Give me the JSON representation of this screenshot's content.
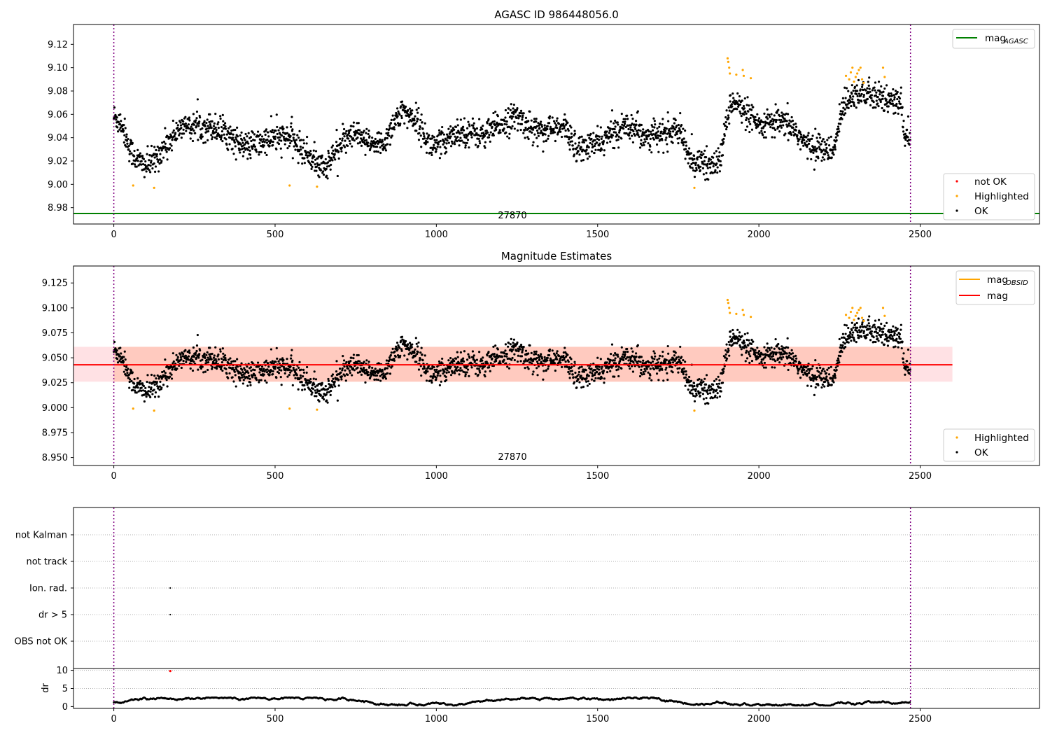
{
  "chart_data": [
    {
      "type": "scatter",
      "title": "AGASC ID 986448056.0",
      "xlabel": "",
      "ylabel": "",
      "xlim": [
        -125,
        2870
      ],
      "ylim": [
        8.966,
        9.137
      ],
      "xticks": [
        "0",
        "500",
        "1000",
        "1500",
        "2000",
        "2500"
      ],
      "yticks": [
        "8.98",
        "9.00",
        "9.02",
        "9.04",
        "9.06",
        "9.08",
        "9.10",
        "9.12"
      ],
      "vlines": [
        0,
        2470
      ],
      "annotation": {
        "text": "27870",
        "x": 1235,
        "y": 8.969
      },
      "hlines": [
        {
          "name": "mag_AGASC",
          "y": 8.975,
          "color": "#008000"
        }
      ],
      "legend_top": [
        {
          "name": "magAGASC",
          "main": "mag",
          "sub": "AGASC",
          "color": "#008000",
          "kind": "line"
        }
      ],
      "legend_bottom": [
        {
          "name": "not OK",
          "color": "#ff0000",
          "kind": "point"
        },
        {
          "name": "Highlighted",
          "color": "#ffa500",
          "kind": "point"
        },
        {
          "name": "OK",
          "color": "#000000",
          "kind": "point"
        }
      ],
      "series": [
        {
          "name": "OK",
          "color": "#000000",
          "n_points": 2470,
          "level": [
            [
              0,
              9.058
            ],
            [
              25,
              9.052
            ],
            [
              50,
              9.03
            ],
            [
              75,
              9.02
            ],
            [
              100,
              9.016
            ],
            [
              125,
              9.02
            ],
            [
              150,
              9.03
            ],
            [
              175,
              9.038
            ],
            [
              200,
              9.048
            ],
            [
              250,
              9.05
            ],
            [
              300,
              9.05
            ],
            [
              350,
              9.044
            ],
            [
              400,
              9.032
            ],
            [
              450,
              9.035
            ],
            [
              500,
              9.04
            ],
            [
              550,
              9.04
            ],
            [
              580,
              9.03
            ],
            [
              620,
              9.022
            ],
            [
              640,
              9.014
            ],
            [
              665,
              9.018
            ],
            [
              700,
              9.034
            ],
            [
              750,
              9.042
            ],
            [
              800,
              9.033
            ],
            [
              840,
              9.036
            ],
            [
              870,
              9.055
            ],
            [
              900,
              9.062
            ],
            [
              940,
              9.055
            ],
            [
              980,
              9.033
            ],
            [
              1020,
              9.035
            ],
            [
              1050,
              9.045
            ],
            [
              1100,
              9.045
            ],
            [
              1150,
              9.042
            ],
            [
              1200,
              9.052
            ],
            [
              1250,
              9.058
            ],
            [
              1300,
              9.047
            ],
            [
              1350,
              9.047
            ],
            [
              1400,
              9.048
            ],
            [
              1440,
              9.03
            ],
            [
              1480,
              9.033
            ],
            [
              1520,
              9.038
            ],
            [
              1550,
              9.045
            ],
            [
              1600,
              9.052
            ],
            [
              1650,
              9.042
            ],
            [
              1700,
              9.042
            ],
            [
              1750,
              9.048
            ],
            [
              1775,
              9.028
            ],
            [
              1800,
              9.02
            ],
            [
              1850,
              9.016
            ],
            [
              1880,
              9.02
            ],
            [
              1900,
              9.055
            ],
            [
              1920,
              9.075
            ],
            [
              1950,
              9.062
            ],
            [
              2000,
              9.05
            ],
            [
              2050,
              9.053
            ],
            [
              2100,
              9.05
            ],
            [
              2150,
              9.033
            ],
            [
              2200,
              9.032
            ],
            [
              2230,
              9.025
            ],
            [
              2260,
              9.068
            ],
            [
              2300,
              9.08
            ],
            [
              2350,
              9.075
            ],
            [
              2400,
              9.072
            ],
            [
              2440,
              9.07
            ],
            [
              2450,
              9.045
            ],
            [
              2470,
              9.04
            ]
          ],
          "noise": 0.006
        },
        {
          "name": "Highlighted",
          "color": "#ffa500",
          "points": [
            [
              60,
              8.999
            ],
            [
              125,
              8.997
            ],
            [
              545,
              8.999
            ],
            [
              630,
              8.998
            ],
            [
              1800,
              8.997
            ],
            [
              1903,
              9.108
            ],
            [
              1905,
              9.105
            ],
            [
              1908,
              9.1
            ],
            [
              1910,
              9.095
            ],
            [
              1930,
              9.094
            ],
            [
              1950,
              9.098
            ],
            [
              1953,
              9.093
            ],
            [
              1975,
              9.091
            ],
            [
              2270,
              9.093
            ],
            [
              2280,
              9.09
            ],
            [
              2285,
              9.096
            ],
            [
              2290,
              9.1
            ],
            [
              2295,
              9.088
            ],
            [
              2300,
              9.092
            ],
            [
              2305,
              9.095
            ],
            [
              2310,
              9.098
            ],
            [
              2315,
              9.1
            ],
            [
              2320,
              9.09
            ],
            [
              2325,
              9.087
            ],
            [
              2385,
              9.1
            ],
            [
              2390,
              9.092
            ]
          ]
        }
      ]
    },
    {
      "type": "scatter",
      "title": "Magnitude Estimates",
      "xlabel": "",
      "ylabel": "",
      "xlim": [
        -125,
        2870
      ],
      "ylim": [
        8.942,
        9.142
      ],
      "xticks": [
        "0",
        "500",
        "1000",
        "1500",
        "2000",
        "2500"
      ],
      "yticks": [
        "8.950",
        "8.975",
        "9.000",
        "9.025",
        "9.050",
        "9.075",
        "9.100",
        "9.125"
      ],
      "vlines": [
        0,
        2470
      ],
      "annotation": {
        "text": "27870",
        "x": 1235,
        "y": 8.945
      },
      "band": {
        "x": [
          -125,
          2600
        ],
        "y": [
          9.026,
          9.061
        ],
        "color": "#ff9aa5",
        "alpha": 0.3
      },
      "obsid_band": {
        "x": [
          0,
          2470
        ],
        "y": [
          9.026,
          9.061
        ],
        "color": "#ffa07a",
        "alpha": 0.35
      },
      "hlines": [
        {
          "name": "mag",
          "y": 9.043,
          "color": "#ff0000",
          "x": [
            -125,
            2600
          ]
        }
      ],
      "legend_top": [
        {
          "name": "magOBSID",
          "main": "mag",
          "sub": "OBSID",
          "color": "#ffa500",
          "kind": "line"
        },
        {
          "name": "mag",
          "main": "mag",
          "sub": "",
          "color": "#ff0000",
          "kind": "line"
        }
      ],
      "legend_bottom": [
        {
          "name": "Highlighted",
          "color": "#ffa500",
          "kind": "point"
        },
        {
          "name": "OK",
          "color": "#000000",
          "kind": "point"
        }
      ]
    },
    {
      "type": "scatter",
      "title": "",
      "xlabel": "",
      "ylabel": "",
      "xlim": [
        -125,
        2870
      ],
      "categories": [
        "OBS not OK",
        "dr > 5",
        "Ion. rad.",
        "not track",
        "not Kalman"
      ],
      "flag_points": [
        {
          "category": "Ion. rad.",
          "x": 175
        },
        {
          "category": "dr > 5",
          "x": 175
        }
      ],
      "vlines": [
        0,
        2470
      ]
    },
    {
      "type": "scatter",
      "title": "",
      "xlabel": "",
      "ylabel": "dr",
      "xlim": [
        -125,
        2870
      ],
      "ylim": [
        -0.5,
        10.5
      ],
      "xticks": [
        "0",
        "500",
        "1000",
        "1500",
        "2000",
        "2500"
      ],
      "yticks": [
        "0",
        "5",
        "10"
      ],
      "vlines": [
        0,
        2470
      ],
      "series": [
        {
          "name": "dr",
          "color": "#000000",
          "n_points": 2470,
          "range": [
            0.3,
            2.5
          ]
        },
        {
          "name": "not OK",
          "color": "#ff0000",
          "points": [
            [
              175,
              9.8
            ]
          ]
        }
      ]
    }
  ]
}
